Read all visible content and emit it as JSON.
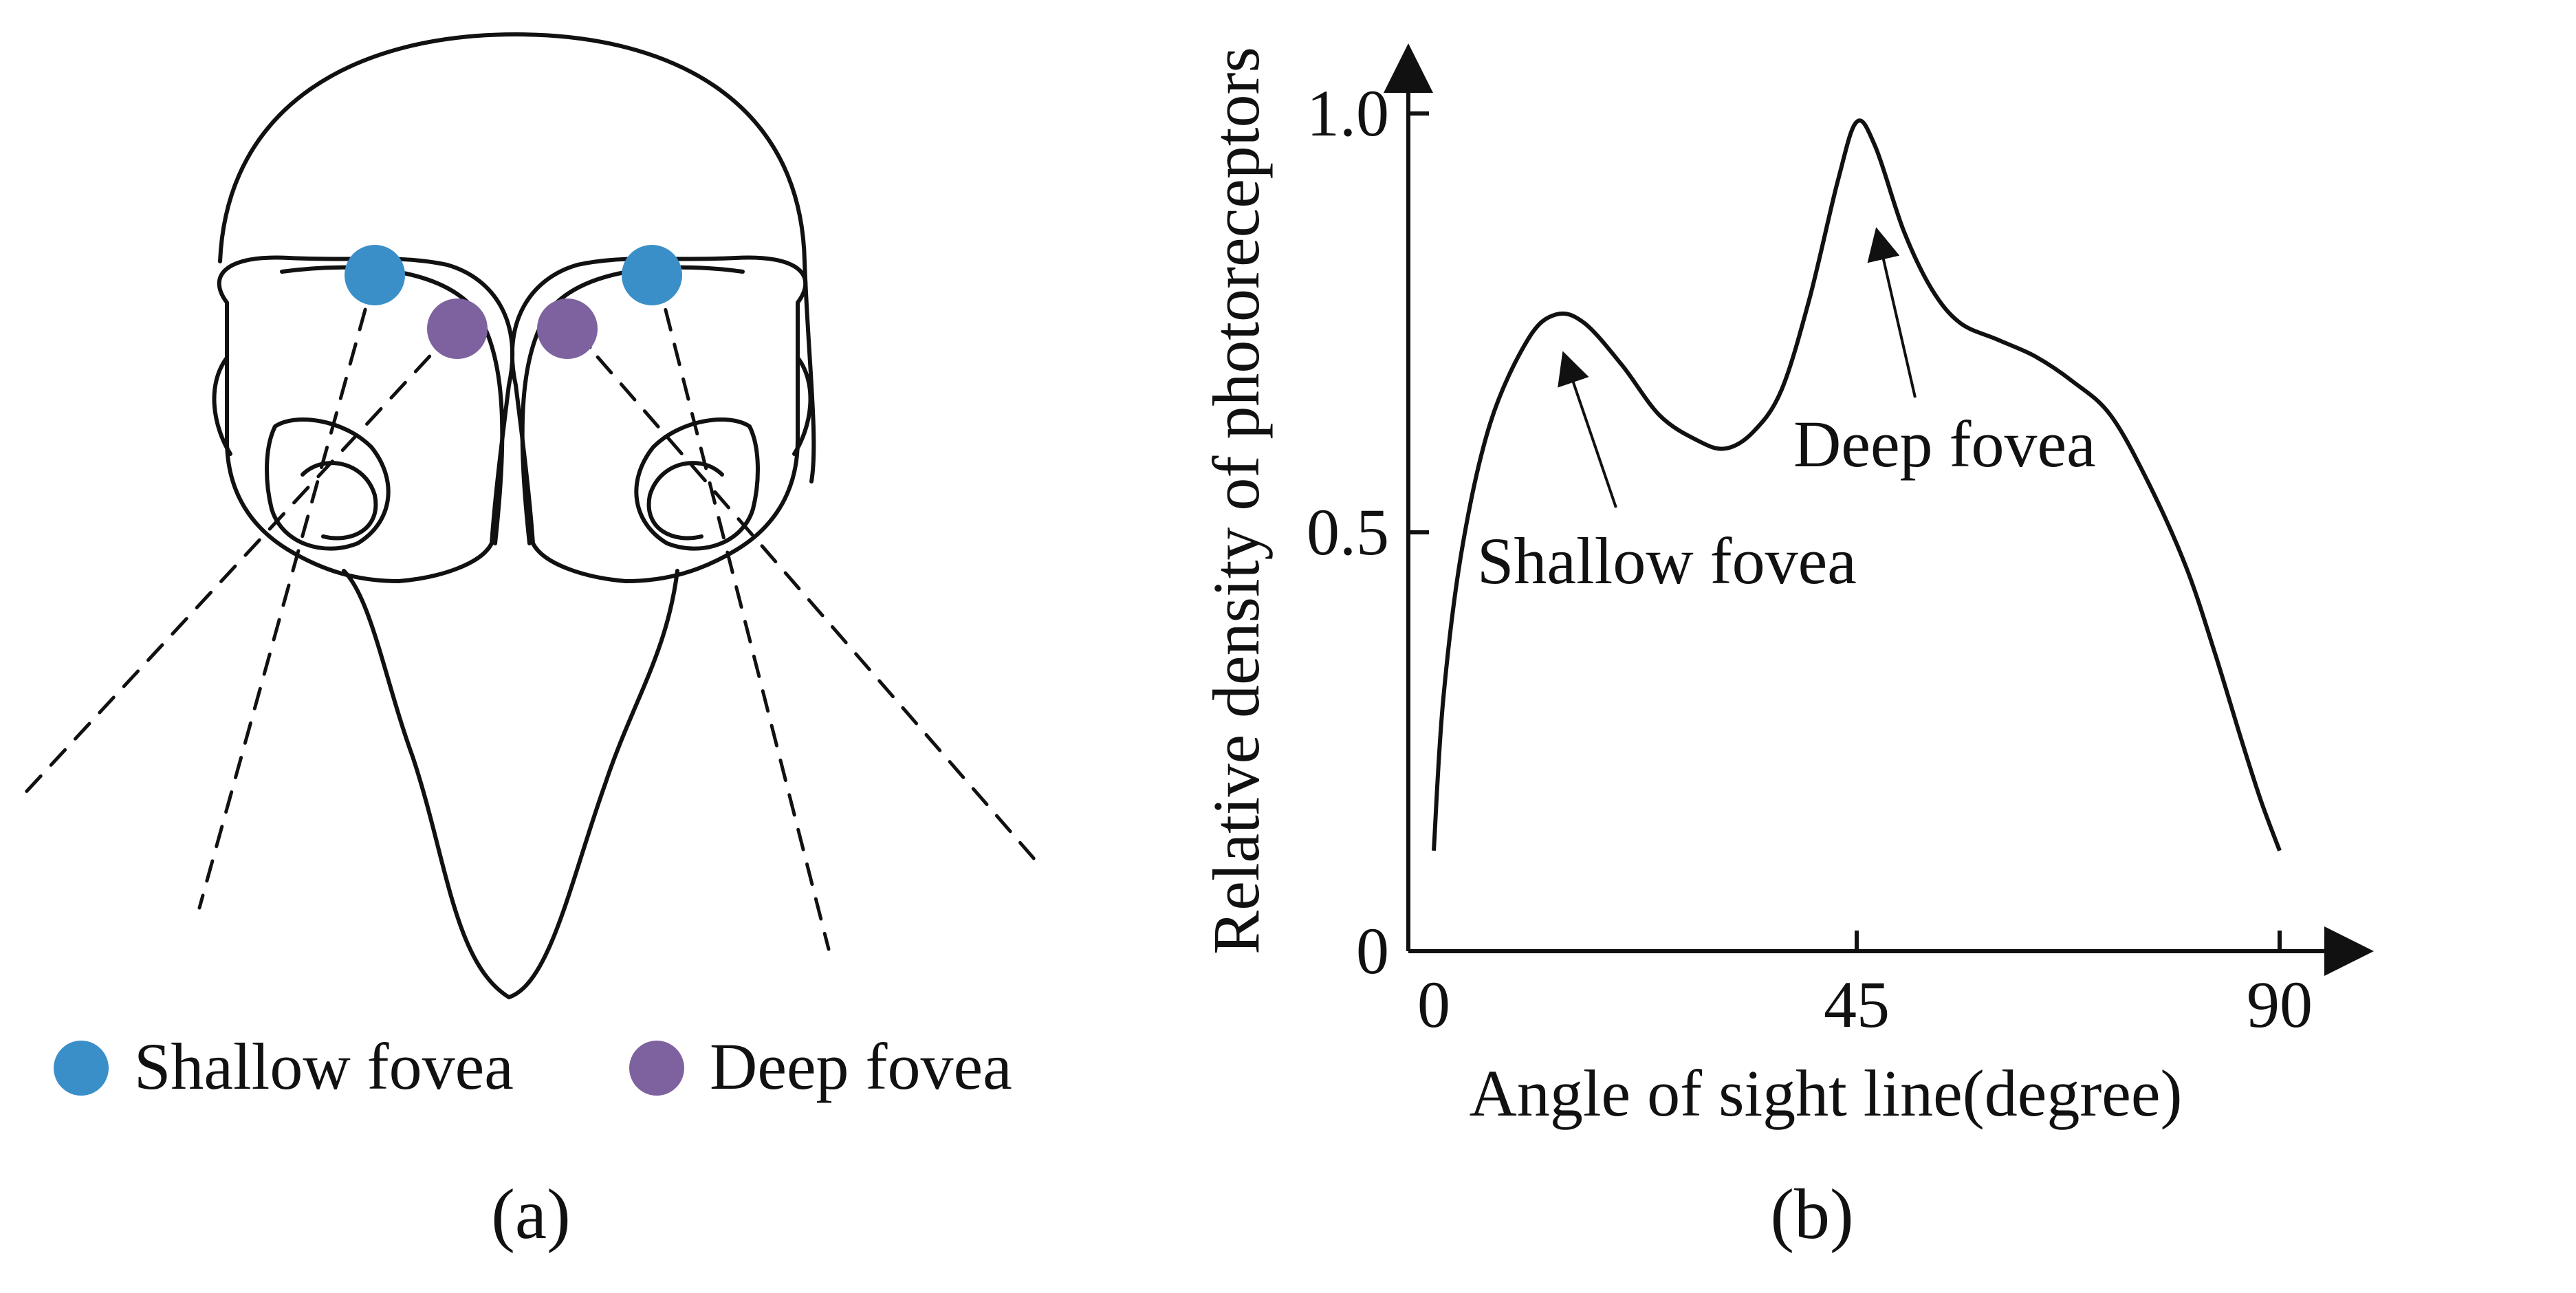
{
  "colors": {
    "shallow_fovea": "#3a8fc8",
    "deep_fovea": "#7d629f",
    "line": "#111111"
  },
  "panel_a": {
    "caption": "(a)",
    "legend": [
      {
        "label": "Shallow fovea",
        "color_key": "shallow_fovea"
      },
      {
        "label": "Deep fovea",
        "color_key": "deep_fovea"
      }
    ]
  },
  "panel_b": {
    "caption": "(b)",
    "annotations": {
      "shallow": "Shallow fovea",
      "deep": "Deep fovea"
    }
  },
  "chart_data": {
    "type": "line",
    "xlabel": "Angle of sight line(degree)",
    "ylabel": "Relative density of photoreceptors",
    "xlim": [
      0,
      90
    ],
    "ylim": [
      0,
      1.0
    ],
    "xticks": [
      "0",
      "45",
      "90"
    ],
    "xtick_values": [
      0,
      45,
      90
    ],
    "yticks": [
      "0",
      "0.5",
      "1.0"
    ],
    "ytick_values": [
      0,
      0.5,
      1.0
    ],
    "series": [
      {
        "x": [
          0,
          1,
          3,
          6,
          10,
          13,
          16,
          20,
          24,
          28,
          31,
          34,
          37,
          40,
          43,
          45,
          47,
          50,
          53,
          56,
          60,
          64,
          68,
          72,
          76,
          80,
          83,
          86,
          88,
          90
        ],
        "y": [
          0.12,
          0.3,
          0.48,
          0.63,
          0.73,
          0.76,
          0.75,
          0.7,
          0.64,
          0.61,
          0.6,
          0.62,
          0.67,
          0.78,
          0.92,
          0.99,
          0.96,
          0.86,
          0.79,
          0.75,
          0.73,
          0.71,
          0.68,
          0.64,
          0.56,
          0.46,
          0.36,
          0.25,
          0.18,
          0.12
        ]
      }
    ]
  }
}
